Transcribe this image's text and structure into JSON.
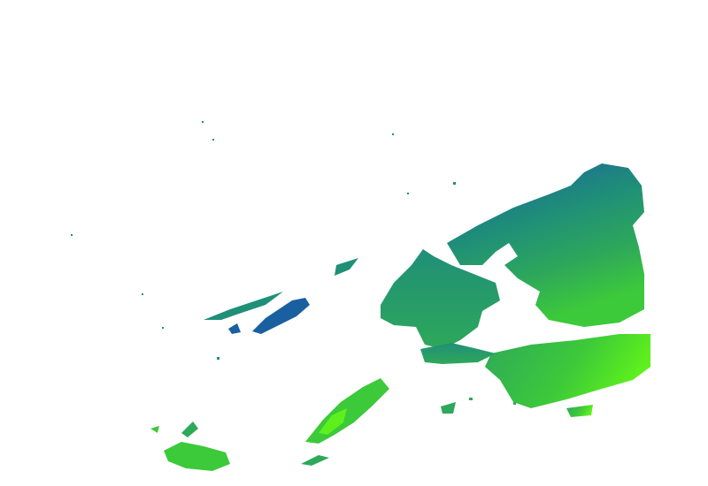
{
  "map": {
    "layer": "precipitation-overlay",
    "background_color": "#ffffff",
    "colors": {
      "heavy": "#1a5fa0",
      "moderate": "#1f8f78",
      "medium": "#2ea85a",
      "light": "#3cc93a",
      "very_light": "#5ef01c"
    }
  }
}
